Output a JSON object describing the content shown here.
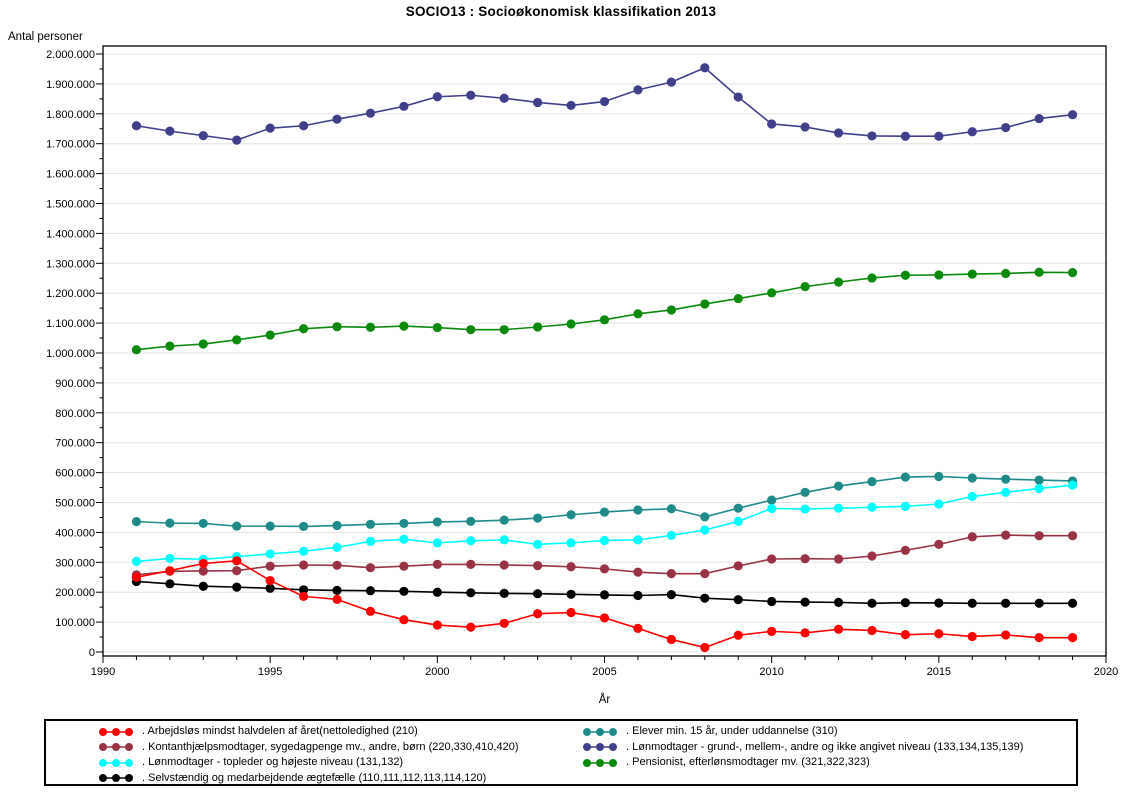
{
  "chart_data": {
    "type": "line",
    "title": "SOCIO13 : Socioøkonomisk klassifikation 2013",
    "xlabel": "År",
    "ylabel": "Antal personer",
    "grid": "horizontal",
    "legend_position": "bottom-boxed-two-columns",
    "x_axis": {
      "min": 1990,
      "max": 2020,
      "major_tick_step": 5,
      "minor_tick_step": 1,
      "tick_labels": [
        "1990",
        "1995",
        "2000",
        "2005",
        "2010",
        "2015",
        "2020"
      ]
    },
    "y_axis": {
      "min": 0,
      "max": 2000000,
      "major_tick_step": 100000,
      "minor_tick_step": 50000,
      "tick_label_format": "dot-thousands-separator"
    },
    "x": [
      1991,
      1992,
      1993,
      1994,
      1995,
      1996,
      1997,
      1998,
      1999,
      2000,
      2001,
      2002,
      2003,
      2004,
      2005,
      2006,
      2007,
      2008,
      2009,
      2010,
      2011,
      2012,
      2013,
      2014,
      2015,
      2016,
      2017,
      2018,
      2019
    ],
    "series": [
      {
        "key": "arbejdslos",
        "label": ". Arbejdsløs mindst halvdelen af året(nettoledighed (210)",
        "color": "#FF0000",
        "legend_column": 0,
        "values": [
          250000,
          272000,
          296000,
          305000,
          239000,
          186000,
          176000,
          136000,
          108000,
          90000,
          83000,
          96000,
          128000,
          132000,
          114000,
          79000,
          42000,
          15000,
          56000,
          69000,
          64000,
          76000,
          72000,
          58000,
          61000,
          52000,
          57000,
          48000,
          48000
        ]
      },
      {
        "key": "kontanthjaelp",
        "label": ". Kontanthjælpsmodtager, sygedagpenge mv., andre, børn (220,330,410,420)",
        "color": "#993344",
        "legend_column": 0,
        "values": [
          258000,
          270000,
          271000,
          272000,
          287000,
          291000,
          290000,
          282000,
          287000,
          293000,
          293000,
          291000,
          289000,
          285000,
          278000,
          267000,
          262000,
          262000,
          288000,
          311000,
          312000,
          311000,
          321000,
          340000,
          360000,
          385000,
          391000,
          389000,
          389000
        ]
      },
      {
        "key": "lonmodtager-topleder",
        "label": ". Lønmodtager - topleder og højeste niveau (131,132)",
        "color": "#00FFFF",
        "legend_column": 0,
        "values": [
          303000,
          313000,
          310000,
          319000,
          328000,
          337000,
          350000,
          370000,
          377000,
          365000,
          372000,
          375000,
          360000,
          365000,
          373000,
          375000,
          390000,
          408000,
          437000,
          480000,
          478000,
          481000,
          484000,
          487000,
          495000,
          520000,
          534000,
          547000,
          558000
        ]
      },
      {
        "key": "selvstaendig",
        "label": ". Selvstændig og medarbejdende ægtefælle (110,111,112,113,114,120)",
        "color": "#000000",
        "legend_column": 0,
        "values": [
          236000,
          228000,
          220000,
          217000,
          213000,
          208000,
          206000,
          205000,
          203000,
          200000,
          198000,
          196000,
          195000,
          193000,
          191000,
          189000,
          192000,
          180000,
          175000,
          169000,
          167000,
          166000,
          163000,
          165000,
          164000,
          163000,
          163000,
          163000,
          163000
        ]
      },
      {
        "key": "elever",
        "label": ". Elever min. 15 år, under uddannelse (310)",
        "color": "#1F8A8A",
        "legend_column": 1,
        "values": [
          436000,
          431000,
          430000,
          421000,
          421000,
          420000,
          423000,
          427000,
          430000,
          435000,
          437000,
          441000,
          448000,
          459000,
          468000,
          475000,
          479000,
          452000,
          481000,
          508000,
          534000,
          555000,
          570000,
          585000,
          587000,
          582000,
          578000,
          575000,
          572000
        ]
      },
      {
        "key": "lonmodtager-grund",
        "label": ". Lønmodtager - grund-, mellem-, andre og ikke angivet niveau (133,134,135,139)",
        "color": "#3F3F8C",
        "legend_column": 1,
        "values": [
          1760000,
          1742000,
          1727000,
          1712000,
          1752000,
          1760000,
          1782000,
          1802000,
          1825000,
          1857000,
          1862000,
          1852000,
          1838000,
          1828000,
          1841000,
          1880000,
          1906000,
          1954000,
          1856000,
          1766000,
          1756000,
          1736000,
          1726000,
          1725000,
          1725000,
          1740000,
          1754000,
          1784000,
          1797000
        ]
      },
      {
        "key": "pensionist",
        "label": ". Pensionist, efterlønsmodtager mv. (321,322,323)",
        "color": "#0A8A0A",
        "legend_column": 1,
        "values": [
          1011000,
          1023000,
          1030000,
          1044000,
          1060000,
          1081000,
          1088000,
          1086000,
          1090000,
          1085000,
          1078000,
          1078000,
          1087000,
          1097000,
          1111000,
          1131000,
          1144000,
          1164000,
          1182000,
          1201000,
          1222000,
          1237000,
          1251000,
          1260000,
          1261000,
          1264000,
          1266000,
          1270000,
          1269000
        ]
      }
    ],
    "draw_order": [
      "lonmodtager-grund",
      "pensionist",
      "elever",
      "lonmodtager-topleder",
      "kontanthjaelp",
      "selvstaendig",
      "arbejdslos"
    ],
    "colors": {
      "grid": "#E3E3E3",
      "frame": "#000000",
      "background": "#FFFFFF"
    }
  }
}
